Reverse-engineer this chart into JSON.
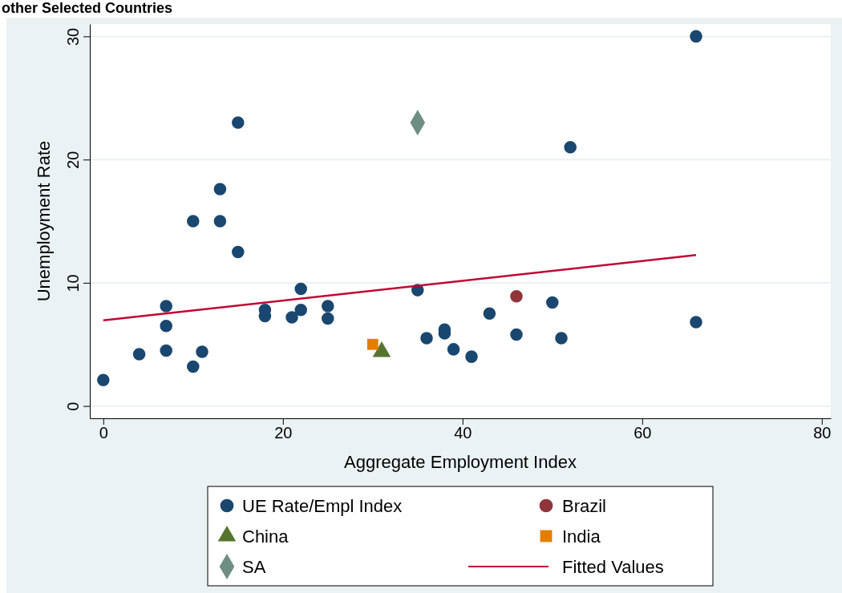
{
  "chart_data": {
    "type": "scatter",
    "title": "other Selected Countries",
    "xlabel": "Aggregate Employment Index",
    "ylabel": "Unemployment Rate",
    "xlim": [
      -1.5,
      81
    ],
    "ylim": [
      -1,
      31
    ],
    "xticks": [
      0,
      20,
      40,
      60,
      80
    ],
    "yticks": [
      0,
      10,
      20,
      30
    ],
    "grid": "y",
    "legend": "bottom",
    "series": [
      {
        "name": "UE Rate/Empl Index",
        "color": "#1a476f",
        "marker": "circle",
        "x": [
          0,
          4,
          7,
          7,
          7,
          10,
          10,
          11,
          13,
          13,
          15,
          15,
          18,
          18,
          21,
          22,
          22,
          25,
          25,
          35,
          36,
          38,
          38,
          39,
          41,
          43,
          46,
          50,
          51,
          52,
          66,
          66
        ],
        "values": [
          2.1,
          4.2,
          8.1,
          6.5,
          4.5,
          15,
          3.2,
          4.4,
          17.6,
          15,
          23,
          12.5,
          7.8,
          7.3,
          7.2,
          9.5,
          7.8,
          8.1,
          7.1,
          9.4,
          5.5,
          6.2,
          5.9,
          4.6,
          4.0,
          7.5,
          5.8,
          8.4,
          5.5,
          21,
          30,
          6.8
        ]
      },
      {
        "name": "Brazil",
        "color": "#90353b",
        "marker": "circle",
        "x": [
          46
        ],
        "values": [
          8.9
        ]
      },
      {
        "name": "China",
        "color": "#55752f",
        "marker": "triangle",
        "x": [
          31
        ],
        "values": [
          4.4
        ]
      },
      {
        "name": "India",
        "color": "#e37e00",
        "marker": "square",
        "x": [
          30
        ],
        "values": [
          5.0
        ]
      },
      {
        "name": "SA",
        "color": "#6e8e84",
        "marker": "diamond",
        "x": [
          35
        ],
        "values": [
          23
        ]
      },
      {
        "name": "Fitted Values",
        "type": "line",
        "color": "#c10534",
        "marker": "none",
        "line_style": "solid",
        "x": [
          0,
          66
        ],
        "values": [
          6.95,
          12.25
        ]
      }
    ]
  }
}
